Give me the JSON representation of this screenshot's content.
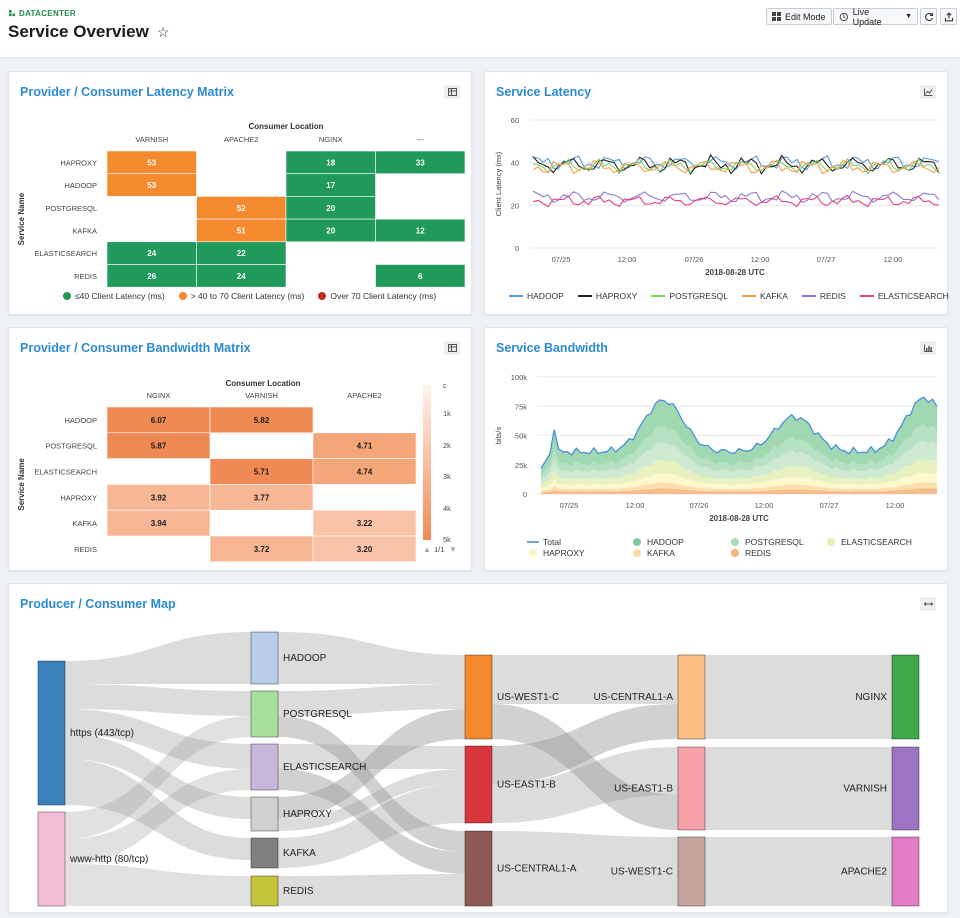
{
  "header": {
    "brand": "DATACENTER",
    "title": "Service Overview",
    "edit_mode": "Edit Mode",
    "live_update": "Live Update"
  },
  "latency_matrix": {
    "title": "Provider / Consumer Latency Matrix",
    "x_title": "Consumer Location",
    "y_title": "Service Name",
    "columns": [
      "VARNISH",
      "APACHE2",
      "NGINX",
      "---"
    ],
    "rows": [
      {
        "name": "HAPROXY",
        "cells": [
          {
            "v": "53",
            "c": "#f5892d"
          },
          null,
          {
            "v": "18",
            "c": "#1f9a5a"
          },
          {
            "v": "33",
            "c": "#1f9a5a"
          }
        ]
      },
      {
        "name": "HADOOP",
        "cells": [
          {
            "v": "53",
            "c": "#f5892d"
          },
          null,
          {
            "v": "17",
            "c": "#1f9a5a"
          },
          null
        ]
      },
      {
        "name": "POSTGRESQL",
        "cells": [
          null,
          {
            "v": "52",
            "c": "#f5892d"
          },
          {
            "v": "20",
            "c": "#1f9a5a"
          },
          null
        ]
      },
      {
        "name": "KAFKA",
        "cells": [
          null,
          {
            "v": "51",
            "c": "#f5892d"
          },
          {
            "v": "20",
            "c": "#1f9a5a"
          },
          {
            "v": "12",
            "c": "#1f9a5a"
          }
        ]
      },
      {
        "name": "ELASTICSEARCH",
        "cells": [
          {
            "v": "24",
            "c": "#1f9a5a"
          },
          {
            "v": "22",
            "c": "#1f9a5a"
          },
          null,
          null
        ]
      },
      {
        "name": "REDIS",
        "cells": [
          {
            "v": "26",
            "c": "#1f9a5a"
          },
          {
            "v": "24",
            "c": "#1f9a5a"
          },
          null,
          {
            "v": "6",
            "c": "#1f9a5a"
          }
        ]
      }
    ],
    "legend": [
      {
        "label": "≤40 Client Latency (ms)",
        "color": "#1f9a5a"
      },
      {
        "label": "> 40 to 70 Client Latency (ms)",
        "color": "#f5892d"
      },
      {
        "label": "Over 70 Client Latency (ms)",
        "color": "#c62828"
      }
    ]
  },
  "latency_chart": {
    "title": "Service Latency",
    "ylabel": "Client Latency (ms)",
    "xlabel": "2018-08-28 UTC",
    "yticks": [
      "0",
      "20",
      "40",
      "60"
    ],
    "xticks": [
      "07/25",
      "12:00",
      "07/26",
      "12:00",
      "07/27",
      "12:00"
    ],
    "legend": [
      {
        "name": "HADOOP",
        "color": "#5b9bd5"
      },
      {
        "name": "HAPROXY",
        "color": "#222222"
      },
      {
        "name": "POSTGRESQL",
        "color": "#7ed36b"
      },
      {
        "name": "KAFKA",
        "color": "#f0a04b"
      },
      {
        "name": "REDIS",
        "color": "#8a7bd8"
      },
      {
        "name": "ELASTICSEARCH",
        "color": "#e0457b"
      }
    ]
  },
  "bandwidth_matrix": {
    "title": "Provider / Consumer Bandwidth Matrix",
    "x_title": "Consumer Location",
    "y_title": "Service Name",
    "columns": [
      "NGINX",
      "VARNISH",
      "APACHE2"
    ],
    "rows": [
      {
        "name": "HADOOP",
        "cells": [
          {
            "v": "6.07",
            "c": "#f08a55"
          },
          {
            "v": "5.82",
            "c": "#f08a55"
          },
          null
        ]
      },
      {
        "name": "POSTGRESQL",
        "cells": [
          {
            "v": "5.87",
            "c": "#f08a55"
          },
          null,
          {
            "v": "4.71",
            "c": "#f3a677"
          }
        ]
      },
      {
        "name": "ELASTICSEARCH",
        "cells": [
          null,
          {
            "v": "5.71",
            "c": "#f08a55"
          },
          {
            "v": "4.74",
            "c": "#f3a677"
          }
        ]
      },
      {
        "name": "HAPROXY",
        "cells": [
          {
            "v": "3.92",
            "c": "#f7b794"
          },
          {
            "v": "3.77",
            "c": "#f7b794"
          },
          null
        ]
      },
      {
        "name": "KAFKA",
        "cells": [
          {
            "v": "3.94",
            "c": "#f7b794"
          },
          null,
          {
            "v": "3.22",
            "c": "#f8c3a6"
          }
        ]
      },
      {
        "name": "REDIS",
        "cells": [
          null,
          {
            "v": "3.72",
            "c": "#f7b794"
          },
          {
            "v": "3.20",
            "c": "#f8c3a6"
          }
        ]
      }
    ],
    "scale_ticks": [
      "c",
      "1k",
      "2k",
      "3k",
      "4k",
      "5k"
    ],
    "pager": "1/1"
  },
  "bandwidth_chart": {
    "title": "Service Bandwidth",
    "ylabel": "bits/s",
    "xlabel": "2018-08-28 UTC",
    "yticks": [
      "0",
      "25k",
      "50k",
      "75k",
      "100k"
    ],
    "xticks": [
      "07/25",
      "12:00",
      "07/26",
      "12:00",
      "07/27",
      "12:00"
    ],
    "legend": [
      {
        "name": "Total",
        "color": "#4a90d9",
        "kind": "line"
      },
      {
        "name": "HADOOP",
        "color": "#7fc99a",
        "kind": "dot"
      },
      {
        "name": "POSTGRESQL",
        "color": "#a9dcb8",
        "kind": "dot"
      },
      {
        "name": "ELASTICSEARCH",
        "color": "#e4f0b3",
        "kind": "dot"
      },
      {
        "name": "HAPROXY",
        "color": "#fff6c5",
        "kind": "dot"
      },
      {
        "name": "KAFKA",
        "color": "#fcd99b",
        "kind": "dot"
      },
      {
        "name": "REDIS",
        "color": "#f5b37a",
        "kind": "dot"
      }
    ]
  },
  "sankey": {
    "title": "Producer / Consumer Map",
    "sources": [
      {
        "label": "https (443/tcp)",
        "color": "#3b82bd"
      },
      {
        "label": "www-http (80/tcp)",
        "color": "#f4bdd6"
      }
    ],
    "services": [
      {
        "label": "HADOOP",
        "color": "#b7cde9"
      },
      {
        "label": "POSTGRESQL",
        "color": "#a6e09a"
      },
      {
        "label": "ELASTICSEARCH",
        "color": "#c9b6db"
      },
      {
        "label": "HAPROXY",
        "color": "#d0d0d0"
      },
      {
        "label": "KAFKA",
        "color": "#808080"
      },
      {
        "label": "REDIS",
        "color": "#c4c43a"
      }
    ],
    "regions_a": [
      {
        "label": "US-WEST1-C",
        "color": "#f5892d"
      },
      {
        "label": "US-EAST1-B",
        "color": "#d7363c"
      },
      {
        "label": "US-CENTRAL1-A",
        "color": "#8e5a55"
      }
    ],
    "regions_b": [
      {
        "label": "US-CENTRAL1-A",
        "color": "#fbbd84"
      },
      {
        "label": "US-EAST1-B",
        "color": "#f7a2a8"
      },
      {
        "label": "US-WEST1-C",
        "color": "#c5a49e"
      }
    ],
    "consumers": [
      {
        "label": "NGINX",
        "color": "#3ea84a"
      },
      {
        "label": "VARNISH",
        "color": "#9d73c4"
      },
      {
        "label": "APACHE2",
        "color": "#e27cc6"
      }
    ]
  }
}
